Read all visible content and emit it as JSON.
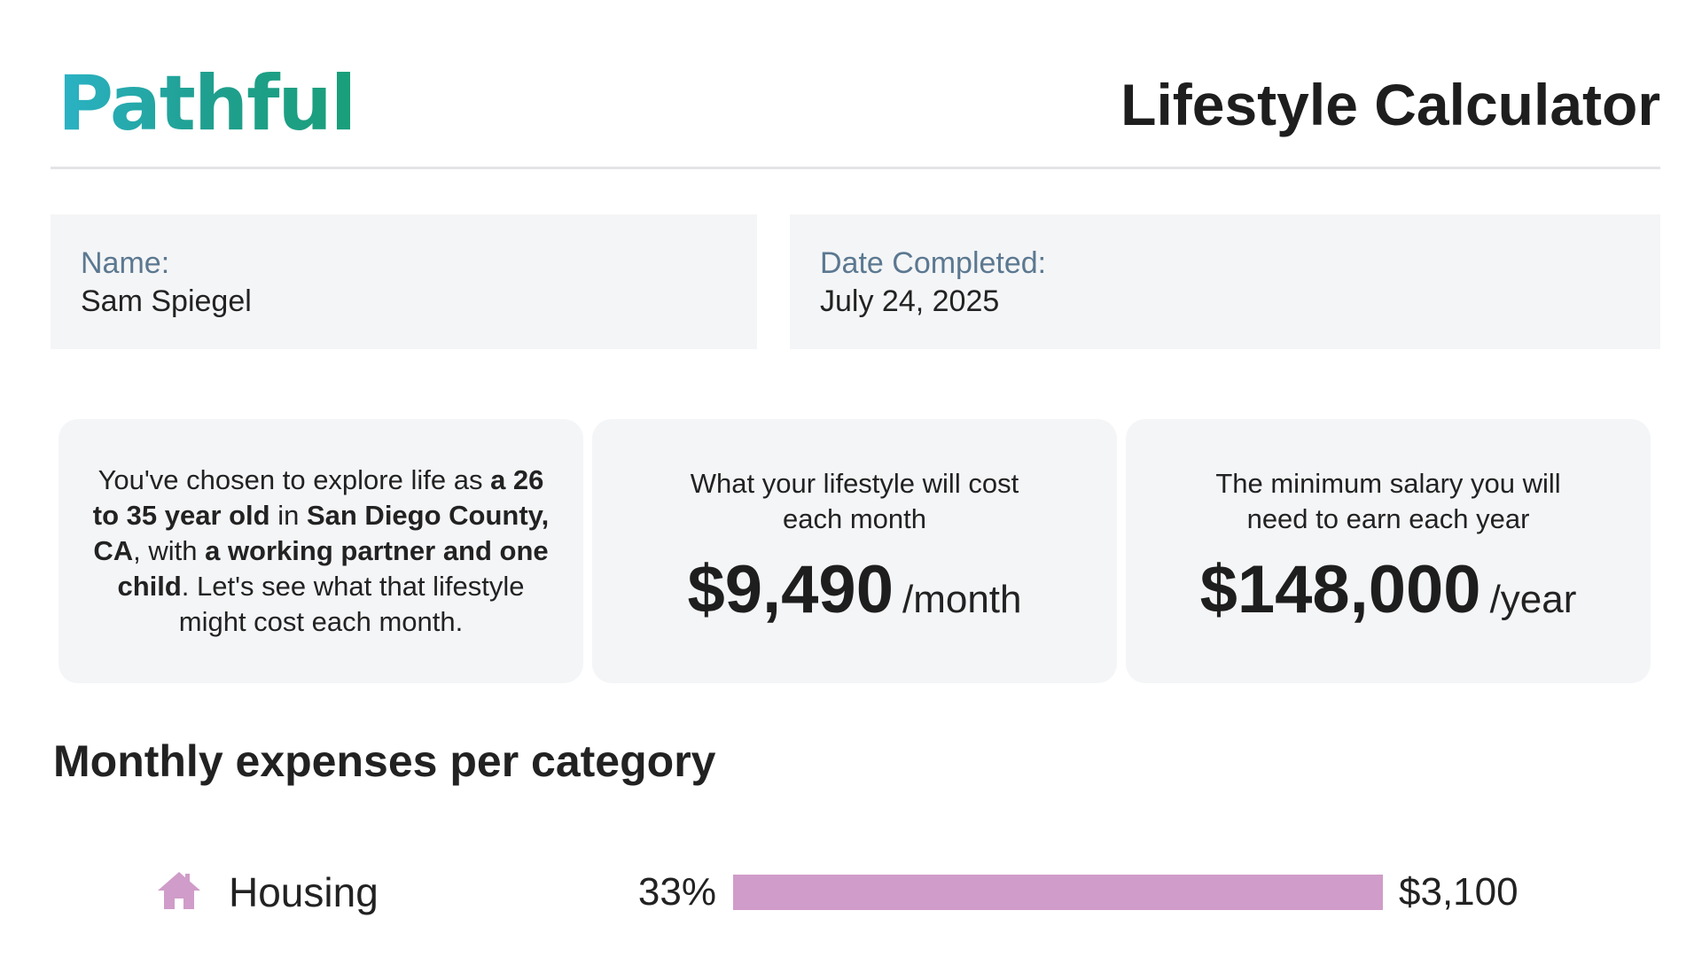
{
  "header": {
    "logo_text": "Pathful",
    "title": "Lifestyle Calculator"
  },
  "info": {
    "name_label": "Name:",
    "name_value": "Sam Spiegel",
    "date_label": "Date Completed:",
    "date_value": "July 24, 2025"
  },
  "summary": {
    "intro": {
      "t1": "You've chosen to explore life as ",
      "b1": "a 26 to 35 year old",
      "t2": " in ",
      "b2": "San Diego County, CA",
      "t3": ", with ",
      "b3": "a working partner and one child",
      "t4": ". Let's see what that lifestyle might cost each month."
    },
    "monthly": {
      "caption": "What your lifestyle will cost each month",
      "amount": "$9,490",
      "unit": "/month"
    },
    "salary": {
      "caption": "The minimum salary you will need to earn each year",
      "amount": "$148,000",
      "unit": "/year"
    }
  },
  "expenses": {
    "title": "Monthly expenses per category",
    "categories": [
      {
        "icon": "house-icon",
        "label": "Housing",
        "percent_label": "33%",
        "percent": 33,
        "amount": "$3,100",
        "color": "#d09cc9"
      }
    ]
  }
}
